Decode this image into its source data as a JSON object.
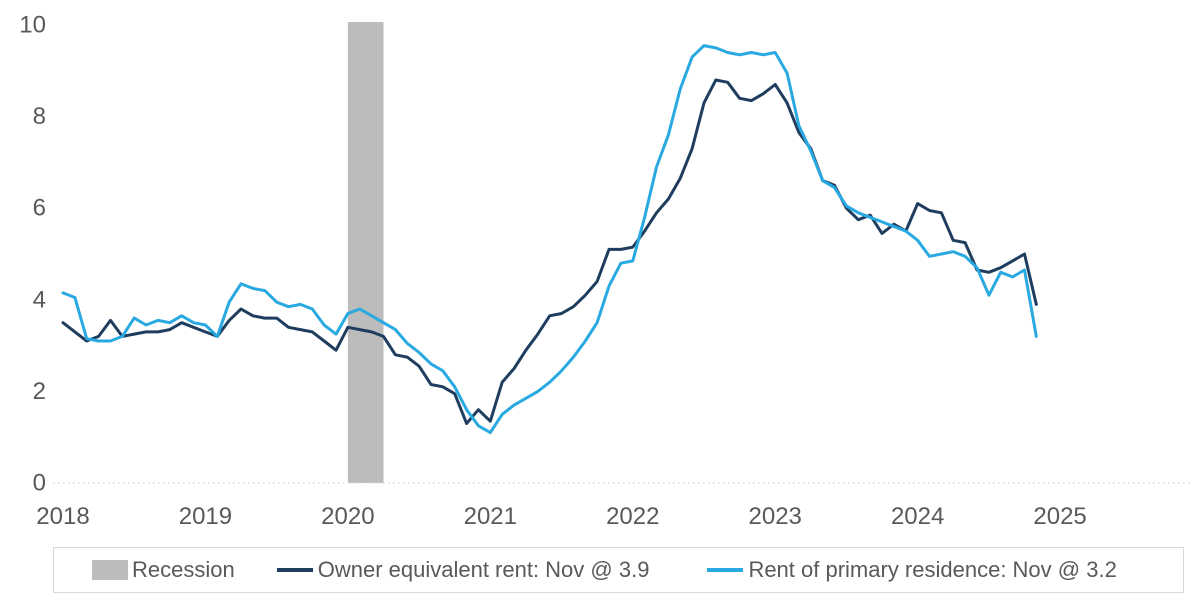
{
  "chart_data": {
    "type": "line",
    "title": "",
    "xlabel": "",
    "ylabel": "",
    "x_start": "2018-01",
    "x_end": "2024-11",
    "x_interval": "monthly",
    "x_tick_labels": [
      "2018",
      "2019",
      "2020",
      "2021",
      "2022",
      "2023",
      "2024",
      "2025"
    ],
    "y_ticks": [
      "0",
      "2",
      "4",
      "6",
      "8",
      "10"
    ],
    "ylim": [
      0,
      10
    ],
    "grid": false,
    "zero_line": true,
    "legend_position": "bottom",
    "axis_text_color": "#595959",
    "recession_band": {
      "label": "Recession",
      "start": "2020-02",
      "end": "2020-04",
      "color": "#bcbcbc"
    },
    "series": [
      {
        "name": "Owner equivalent rent",
        "legend_label": "Owner equivalent rent: Nov @ 3.9",
        "latest_month": "Nov",
        "latest_value": 3.9,
        "color": "#1f3e5f",
        "values": [
          3.5,
          3.3,
          3.1,
          3.2,
          3.55,
          3.2,
          3.25,
          3.3,
          3.3,
          3.35,
          3.5,
          3.4,
          3.3,
          3.2,
          3.55,
          3.8,
          3.65,
          3.6,
          3.6,
          3.4,
          3.35,
          3.3,
          3.1,
          2.9,
          3.4,
          3.35,
          3.3,
          3.2,
          2.8,
          2.75,
          2.55,
          2.15,
          2.1,
          1.95,
          1.3,
          1.6,
          1.35,
          2.2,
          2.5,
          2.9,
          3.25,
          3.65,
          3.7,
          3.85,
          4.1,
          4.4,
          5.1,
          5.1,
          5.15,
          5.5,
          5.9,
          6.2,
          6.65,
          7.3,
          8.3,
          8.8,
          8.75,
          8.4,
          8.35,
          8.5,
          8.7,
          8.3,
          7.65,
          7.3,
          6.6,
          6.5,
          6.0,
          5.75,
          5.85,
          5.45,
          5.65,
          5.5,
          6.1,
          5.95,
          5.9,
          5.3,
          5.25,
          4.65,
          4.6,
          4.7,
          4.85,
          5.0,
          3.9
        ]
      },
      {
        "name": "Rent of primary residence",
        "legend_label": "Rent of primary residence: Nov @ 3.2",
        "latest_month": "Nov",
        "latest_value": 3.2,
        "color": "#29a9e1",
        "values": [
          4.15,
          4.05,
          3.15,
          3.1,
          3.1,
          3.2,
          3.6,
          3.45,
          3.55,
          3.5,
          3.65,
          3.5,
          3.45,
          3.2,
          3.95,
          4.35,
          4.25,
          4.2,
          3.95,
          3.85,
          3.9,
          3.8,
          3.45,
          3.25,
          3.7,
          3.8,
          3.65,
          3.5,
          3.35,
          3.05,
          2.85,
          2.6,
          2.45,
          2.1,
          1.6,
          1.25,
          1.1,
          1.5,
          1.7,
          1.85,
          2.0,
          2.2,
          2.45,
          2.75,
          3.1,
          3.5,
          4.3,
          4.8,
          4.85,
          5.8,
          6.9,
          7.6,
          8.6,
          9.3,
          9.55,
          9.5,
          9.4,
          9.35,
          9.4,
          9.35,
          9.4,
          8.95,
          7.8,
          7.25,
          6.6,
          6.45,
          6.05,
          5.9,
          5.8,
          5.7,
          5.6,
          5.5,
          5.3,
          4.95,
          5.0,
          5.05,
          4.95,
          4.7,
          4.1,
          4.6,
          4.5,
          4.65,
          3.2
        ]
      }
    ]
  }
}
